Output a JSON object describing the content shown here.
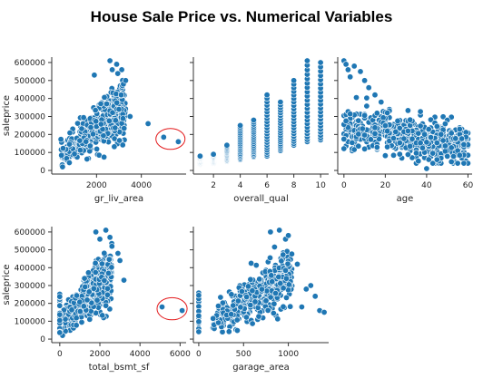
{
  "title": "House Sale Price vs. Numerical Variables",
  "colors": {
    "point": "#1f77b4",
    "point_edge": "#ffffff",
    "outlier_circle": "#e31a1c",
    "axis": "#333333"
  },
  "chart_data": [
    {
      "type": "scatter",
      "xlabel": "gr_liv_area",
      "ylabel": "saleprice",
      "xlim": [
        0,
        6000
      ],
      "ylim": [
        -20000,
        630000
      ],
      "xticks": [
        2000,
        4000
      ],
      "yticks": [
        0,
        100000,
        200000,
        300000,
        400000,
        500000,
        600000
      ],
      "ytick_labels": [
        "0",
        "100000",
        "200000",
        "300000",
        "400000",
        "500000",
        "600000"
      ],
      "trend": {
        "xmin": 400,
        "xmax": 3300,
        "spread": 0.35,
        "n": 420
      },
      "points": [
        [
          2600,
          610000
        ],
        [
          2900,
          590000
        ],
        [
          2700,
          560000
        ],
        [
          3200,
          480000
        ],
        [
          3100,
          420000
        ],
        [
          3500,
          300000
        ],
        [
          3300,
          500000
        ],
        [
          1900,
          530000
        ],
        [
          3000,
          340000
        ],
        [
          5000,
          185000
        ],
        [
          5650,
          160000
        ],
        [
          4300,
          260000
        ]
      ],
      "outlier": {
        "x": 5300,
        "y": 175000,
        "rx": 650,
        "ry": 58000
      },
      "show_ylabel": true
    },
    {
      "type": "scatter",
      "xlabel": "overall_qual",
      "xlim": [
        0.5,
        10.6
      ],
      "ylim": [
        -20000,
        630000
      ],
      "xticks": [
        2,
        4,
        6,
        8,
        10
      ],
      "discrete": [
        {
          "x": 1,
          "lo": 35000,
          "hi": 80000
        },
        {
          "x": 2,
          "lo": 40000,
          "hi": 90000
        },
        {
          "x": 3,
          "lo": 50000,
          "hi": 140000
        },
        {
          "x": 4,
          "lo": 60000,
          "hi": 250000
        },
        {
          "x": 5,
          "lo": 75000,
          "hi": 280000
        },
        {
          "x": 6,
          "lo": 80000,
          "hi": 420000
        },
        {
          "x": 7,
          "lo": 110000,
          "hi": 380000
        },
        {
          "x": 8,
          "lo": 140000,
          "hi": 500000
        },
        {
          "x": 9,
          "lo": 160000,
          "hi": 610000
        },
        {
          "x": 10,
          "lo": 170000,
          "hi": 600000
        }
      ],
      "show_ylabel": false
    },
    {
      "type": "scatter",
      "xlabel": "age",
      "xlim": [
        -3,
        62
      ],
      "ylim": [
        -20000,
        630000
      ],
      "xticks": [
        0,
        20,
        40,
        60
      ],
      "age_cloud": {
        "n": 520
      },
      "points": [
        [
          0,
          610000
        ],
        [
          1,
          590000
        ],
        [
          2,
          560000
        ],
        [
          3,
          520000
        ],
        [
          5,
          580000
        ],
        [
          8,
          550000
        ],
        [
          10,
          500000
        ],
        [
          12,
          460000
        ],
        [
          15,
          420000
        ],
        [
          18,
          380000
        ],
        [
          40,
          10000
        ],
        [
          45,
          60000
        ]
      ],
      "show_ylabel": false
    },
    {
      "type": "scatter",
      "xlabel": "total_bsmt_sf",
      "ylabel": "saleprice",
      "xlim": [
        -400,
        6300
      ],
      "ylim": [
        -20000,
        630000
      ],
      "xticks": [
        0,
        2000,
        4000,
        6000
      ],
      "trend": {
        "xmin": 0,
        "xmax": 2600,
        "spread": 0.35,
        "n": 420,
        "zero_cluster": 25
      },
      "points": [
        [
          2300,
          610000
        ],
        [
          2500,
          570000
        ],
        [
          2000,
          560000
        ],
        [
          2900,
          480000
        ],
        [
          3000,
          440000
        ],
        [
          3200,
          330000
        ],
        [
          1800,
          600000
        ],
        [
          2600,
          520000
        ],
        [
          5100,
          180000
        ],
        [
          6100,
          160000
        ]
      ],
      "outlier": {
        "x": 5600,
        "y": 170000,
        "rx": 750,
        "ry": 62000
      },
      "show_ylabel": true
    },
    {
      "type": "scatter",
      "xlabel": "garage_area",
      "xlim": [
        -60,
        1450
      ],
      "ylim": [
        -20000,
        630000
      ],
      "xticks": [
        0,
        500,
        1000
      ],
      "ytick_labels": [],
      "trend": {
        "xmin": 150,
        "xmax": 1050,
        "spread": 0.35,
        "n": 420,
        "zero_cluster": 18
      },
      "points": [
        [
          1350,
          160000
        ],
        [
          1400,
          150000
        ],
        [
          1300,
          240000
        ],
        [
          1250,
          300000
        ],
        [
          900,
          610000
        ],
        [
          1000,
          580000
        ],
        [
          800,
          600000
        ],
        [
          1100,
          420000
        ],
        [
          1200,
          280000
        ],
        [
          1150,
          180000
        ]
      ],
      "show_ylabel": false
    }
  ]
}
